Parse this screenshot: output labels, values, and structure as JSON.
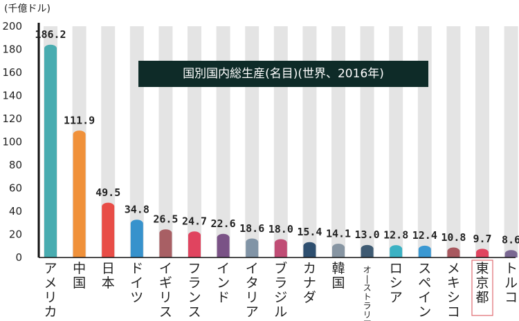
{
  "chart_data": {
    "type": "bar",
    "title": "国別国内総生産(名目)(世界、2016年)",
    "unit": "(千億ドル)",
    "categories": [
      "アメリカ",
      "中国",
      "日本",
      "ドイツ",
      "イギリス",
      "フランス",
      "インド",
      "イタリア",
      "ブラジル",
      "カナダ",
      "韓国",
      "オーストラリア",
      "ロシア",
      "スペイン",
      "メキシコ",
      "東京都",
      "トルコ"
    ],
    "values": [
      186.2,
      111.9,
      49.5,
      34.8,
      26.5,
      24.7,
      22.6,
      18.6,
      18.0,
      15.4,
      14.1,
      13.0,
      12.8,
      12.4,
      10.8,
      9.7,
      8.6
    ],
    "value_labels": [
      "186.2",
      "111.9",
      "49.5",
      "34.8",
      "26.5",
      "24.7",
      "22.6",
      "18.6",
      "18.0",
      "15.4",
      "14.1",
      "13.0",
      "12.8",
      "12.4",
      "10.8",
      "9.7",
      "8.6"
    ],
    "colors": [
      "#49acb0",
      "#f0913a",
      "#e84d47",
      "#3792cc",
      "#a85f64",
      "#e0445f",
      "#7a5286",
      "#8194a6",
      "#c04d75",
      "#2e4f6f",
      "#8795a2",
      "#3e5a72",
      "#3bb1c3",
      "#3a98d2",
      "#a8585f",
      "#e0445f",
      "#7a6892"
    ],
    "highlight": "東京都",
    "highlight_color": "#e06a70",
    "stripe_color": "#e4e4e4",
    "yticks": [
      0,
      20,
      40,
      60,
      80,
      100,
      120,
      140,
      160,
      180,
      200
    ],
    "ylim": [
      0,
      200
    ],
    "grid": "vertical stripes",
    "legend": "none"
  }
}
